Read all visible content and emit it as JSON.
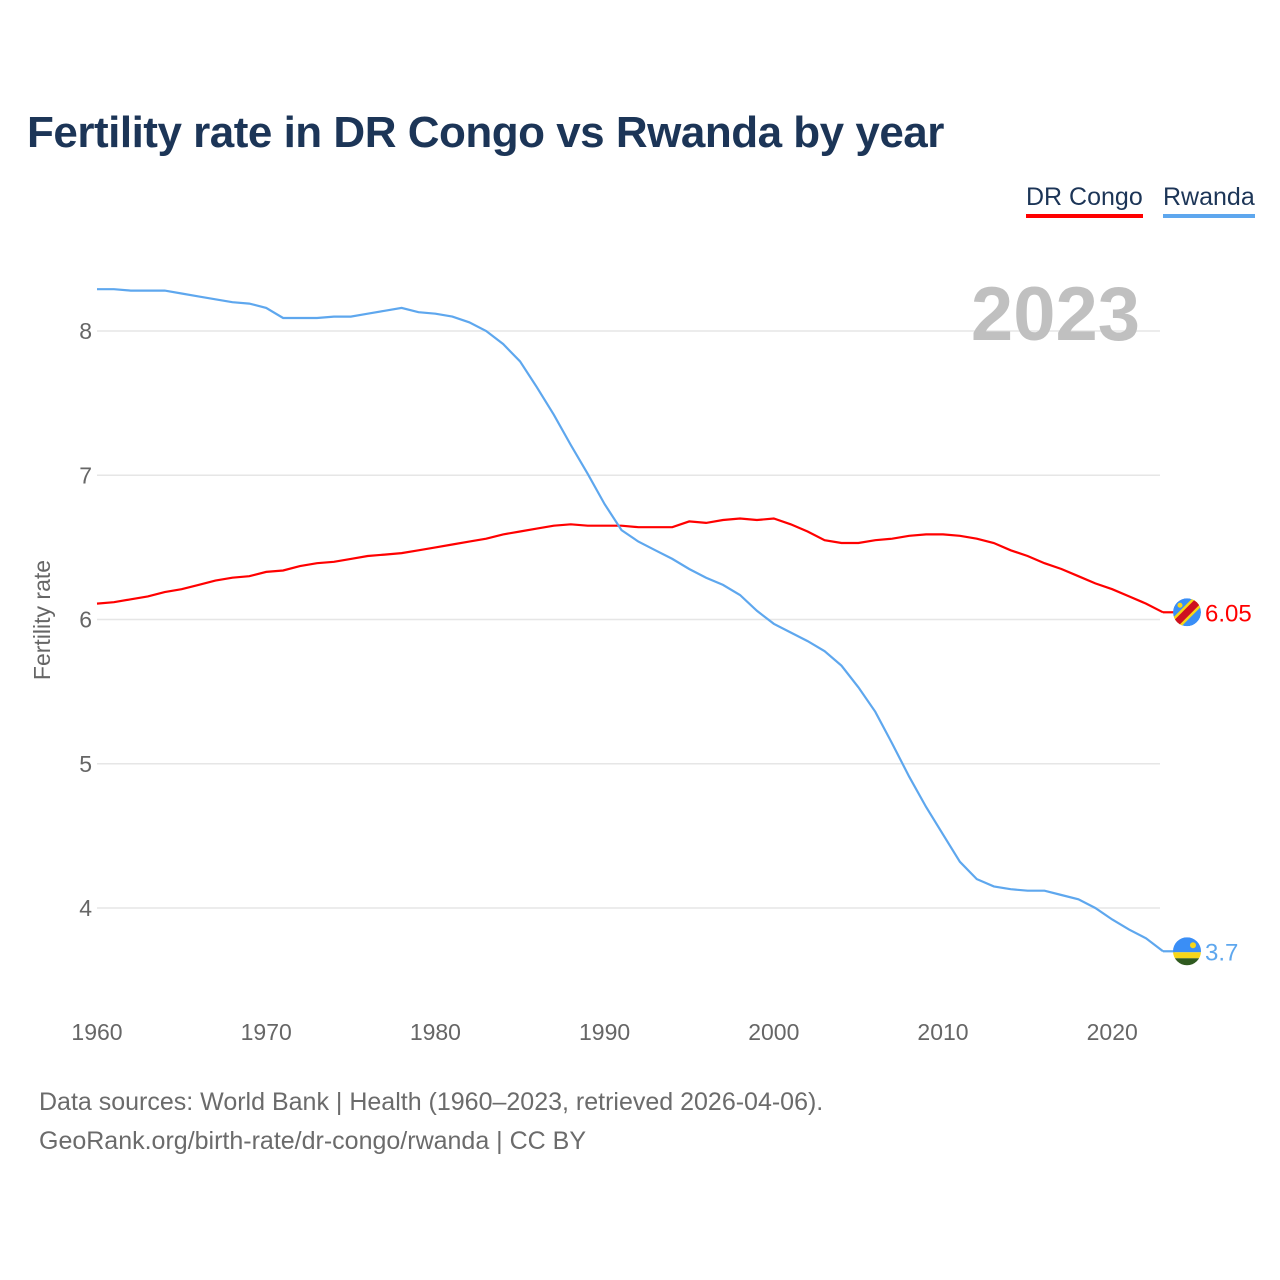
{
  "chart_data": {
    "type": "line",
    "title": "Fertility rate in DR Congo vs Rwanda by year",
    "xlabel": "",
    "ylabel": "Fertility rate",
    "xlim": [
      1960,
      2023
    ],
    "ylim": [
      3.5,
      8.4
    ],
    "x_ticks": [
      1960,
      1970,
      1980,
      1990,
      2000,
      2010,
      2020
    ],
    "y_ticks": [
      4,
      5,
      6,
      7,
      8
    ],
    "grid": true,
    "legend_position": "top-right",
    "year_label": "2023",
    "x": [
      1960,
      1961,
      1962,
      1963,
      1964,
      1965,
      1966,
      1967,
      1968,
      1969,
      1970,
      1971,
      1972,
      1973,
      1974,
      1975,
      1976,
      1977,
      1978,
      1979,
      1980,
      1981,
      1982,
      1983,
      1984,
      1985,
      1986,
      1987,
      1988,
      1989,
      1990,
      1991,
      1992,
      1993,
      1994,
      1995,
      1996,
      1997,
      1998,
      1999,
      2000,
      2001,
      2002,
      2003,
      2004,
      2005,
      2006,
      2007,
      2008,
      2009,
      2010,
      2011,
      2012,
      2013,
      2014,
      2015,
      2016,
      2017,
      2018,
      2019,
      2020,
      2021,
      2022,
      2023
    ],
    "series": [
      {
        "name": "DR Congo",
        "color": "#ff0000",
        "end_label": "6.05",
        "values": [
          6.11,
          6.12,
          6.14,
          6.16,
          6.19,
          6.21,
          6.24,
          6.27,
          6.29,
          6.3,
          6.33,
          6.34,
          6.37,
          6.39,
          6.4,
          6.42,
          6.44,
          6.45,
          6.46,
          6.48,
          6.5,
          6.52,
          6.54,
          6.56,
          6.59,
          6.61,
          6.63,
          6.65,
          6.66,
          6.65,
          6.65,
          6.65,
          6.64,
          6.64,
          6.64,
          6.68,
          6.67,
          6.69,
          6.7,
          6.69,
          6.7,
          6.66,
          6.61,
          6.55,
          6.53,
          6.53,
          6.55,
          6.56,
          6.58,
          6.59,
          6.59,
          6.58,
          6.56,
          6.53,
          6.48,
          6.44,
          6.39,
          6.35,
          6.3,
          6.25,
          6.21,
          6.16,
          6.11,
          6.05
        ]
      },
      {
        "name": "Rwanda",
        "color": "#5ea7ee",
        "end_label": "3.7",
        "values": [
          8.29,
          8.29,
          8.28,
          8.28,
          8.28,
          8.26,
          8.24,
          8.22,
          8.2,
          8.19,
          8.16,
          8.09,
          8.09,
          8.09,
          8.1,
          8.1,
          8.12,
          8.14,
          8.16,
          8.13,
          8.12,
          8.1,
          8.06,
          8.0,
          7.91,
          7.79,
          7.61,
          7.42,
          7.21,
          7.01,
          6.8,
          6.62,
          6.54,
          6.48,
          6.42,
          6.35,
          6.29,
          6.24,
          6.17,
          6.06,
          5.97,
          5.91,
          5.85,
          5.78,
          5.68,
          5.53,
          5.36,
          5.14,
          4.91,
          4.7,
          4.51,
          4.32,
          4.2,
          4.15,
          4.13,
          4.12,
          4.12,
          4.09,
          4.06,
          4.0,
          3.92,
          3.85,
          3.79,
          3.7
        ]
      }
    ]
  },
  "footer": {
    "line1": "Data sources: World Bank | Health (1960–2023, retrieved 2026-04-06).",
    "line2": "GeoRank.org/birth-rate/dr-congo/rwanda | CC BY"
  }
}
